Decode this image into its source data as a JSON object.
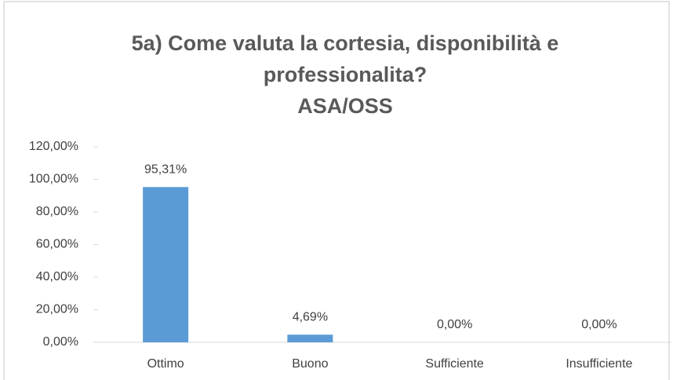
{
  "chart_data": {
    "type": "bar",
    "title": [
      "5a) Come valuta la cortesia, disponibilità e",
      "professionalita?",
      "ASA/OSS"
    ],
    "categories": [
      "Ottimo",
      "Buono",
      "Sufficiente",
      "Insufficiente"
    ],
    "values": [
      95.31,
      4.69,
      0,
      0
    ],
    "value_labels": [
      "95,31%",
      "4,69%",
      "0,00%",
      "0,00%"
    ],
    "color": "#5b9bd5",
    "ylim": [
      0,
      120
    ],
    "yticks": [
      {
        "value": 0,
        "label": "0,00%"
      },
      {
        "value": 20,
        "label": "20,00%"
      },
      {
        "value": 40,
        "label": "40,00%"
      },
      {
        "value": 60,
        "label": "60,00%"
      },
      {
        "value": 80,
        "label": "80,00%"
      },
      {
        "value": 100,
        "label": "100,00%"
      },
      {
        "value": 120,
        "label": "120,00%"
      }
    ],
    "grid": false
  }
}
